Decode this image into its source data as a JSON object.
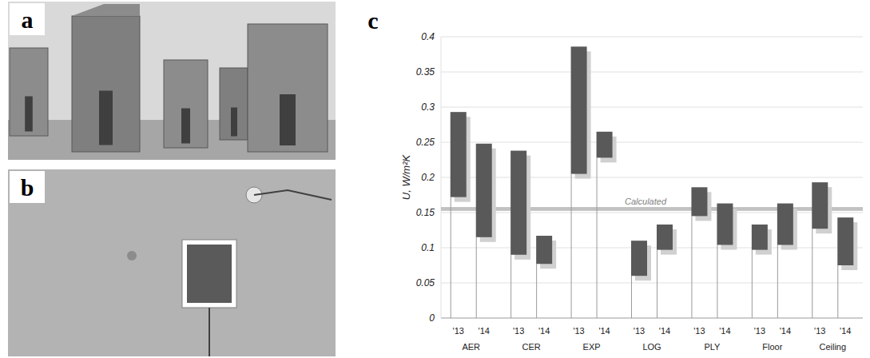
{
  "panel_labels": [
    "a",
    "b",
    "c"
  ],
  "chart_data": {
    "type": "bar",
    "y_label": "U, W/m²K",
    "groups": [
      "AER",
      "CER",
      "EXP",
      "LOG",
      "PLY",
      "Floor",
      "Ceiling"
    ],
    "categories": [
      "'13",
      "'14",
      "'13",
      "'14",
      "'13",
      "'14",
      "'13",
      "'14",
      "'13",
      "'14",
      "'13",
      "'14",
      "'13",
      "'14"
    ],
    "values": [
      [
        0.172,
        0.293
      ],
      [
        0.115,
        0.248
      ],
      [
        0.09,
        0.238
      ],
      [
        0.077,
        0.117
      ],
      [
        0.205,
        0.386
      ],
      [
        0.228,
        0.265
      ],
      [
        0.06,
        0.11
      ],
      [
        0.097,
        0.133
      ],
      [
        0.145,
        0.186
      ],
      [
        0.104,
        0.163
      ],
      [
        0.097,
        0.133
      ],
      [
        0.104,
        0.163
      ],
      [
        0.127,
        0.193
      ],
      [
        0.075,
        0.143
      ]
    ],
    "color": "#595959",
    "reference_lines": [
      {
        "value": 0.155,
        "label": "Calculated"
      }
    ],
    "ylim": [
      0,
      0.4
    ],
    "yticks": [
      0,
      0.05,
      0.1,
      0.15,
      0.2,
      0.25,
      0.3,
      0.35,
      0.4
    ],
    "grid": true
  }
}
